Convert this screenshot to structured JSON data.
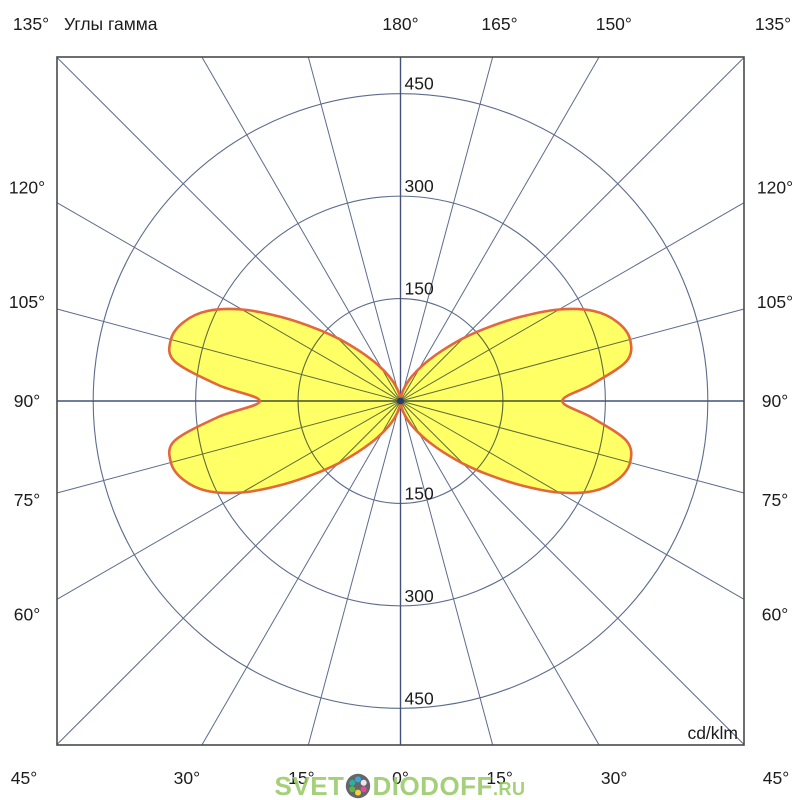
{
  "watermark": {
    "part1": "SVET",
    "part2": "DIODOFF",
    "tld": ".RU",
    "logo_bg": "#4b4b50",
    "logo_dots": [
      "#38a8dc",
      "#e9e9e9",
      "#e8489a",
      "#f2d23c",
      "#5cb544",
      "#28b2a2"
    ]
  },
  "chart_data": {
    "type": "polar",
    "title": "Углы гамма",
    "units": "cd/klm",
    "gamma_zero_position": "bottom",
    "angle_grid_step_deg": 15,
    "radial_ticks": [
      150,
      300,
      450
    ],
    "radial_axis_max": 503,
    "grid_color": "#5d6c8c",
    "axis_color": "#44507a",
    "frame_color": "#4a4a4a",
    "angle_labels": {
      "top": [
        [
          "180°",
          0
        ],
        [
          "165°",
          15
        ],
        [
          "150°",
          30
        ]
      ],
      "bottom": [
        [
          "30°",
          -30
        ],
        [
          "15°",
          -15
        ],
        [
          "0°",
          0
        ],
        [
          "15°",
          15
        ],
        [
          "30°",
          30
        ]
      ],
      "left": [
        [
          "120°",
          30
        ],
        [
          "105°",
          15
        ],
        [
          "90°",
          0
        ],
        [
          "75°",
          -15
        ],
        [
          "60°",
          -30
        ]
      ],
      "right": [
        [
          "120°",
          30
        ],
        [
          "105°",
          15
        ],
        [
          "90°",
          0
        ],
        [
          "75°",
          -15
        ],
        [
          "60°",
          -30
        ]
      ],
      "corners": {
        "top_left": "135°",
        "top_right": "135°",
        "bottom_left": "45°",
        "bottom_right": "45°"
      }
    },
    "curve": {
      "fill": "#ffff66",
      "stroke": "#e2673b",
      "center_dot_color": "#2b3a66",
      "right_profile": [
        [
          0,
          2
        ],
        [
          5,
          5
        ],
        [
          10,
          10
        ],
        [
          15,
          18
        ],
        [
          20,
          28
        ],
        [
          25,
          40
        ],
        [
          30,
          55
        ],
        [
          35,
          74
        ],
        [
          40,
          98
        ],
        [
          45,
          130
        ],
        [
          50,
          168
        ],
        [
          55,
          215
        ],
        [
          60,
          268
        ],
        [
          65,
          312
        ],
        [
          70,
          338
        ],
        [
          75,
          348
        ],
        [
          80,
          336
        ],
        [
          85,
          282
        ],
        [
          90,
          237
        ],
        [
          95,
          282
        ],
        [
          100,
          336
        ],
        [
          105,
          348
        ],
        [
          110,
          338
        ],
        [
          115,
          312
        ],
        [
          120,
          268
        ],
        [
          125,
          215
        ],
        [
          130,
          168
        ],
        [
          135,
          130
        ],
        [
          140,
          98
        ],
        [
          145,
          74
        ],
        [
          150,
          55
        ],
        [
          155,
          40
        ],
        [
          160,
          28
        ],
        [
          165,
          18
        ],
        [
          170,
          10
        ],
        [
          175,
          5
        ],
        [
          180,
          2
        ]
      ],
      "left_profile": [
        [
          0,
          2
        ],
        [
          5,
          5
        ],
        [
          10,
          10
        ],
        [
          15,
          18
        ],
        [
          20,
          28
        ],
        [
          25,
          40
        ],
        [
          30,
          55
        ],
        [
          35,
          74
        ],
        [
          40,
          98
        ],
        [
          45,
          130
        ],
        [
          50,
          168
        ],
        [
          55,
          215
        ],
        [
          60,
          268
        ],
        [
          65,
          312
        ],
        [
          70,
          338
        ],
        [
          75,
          348
        ],
        [
          80,
          336
        ],
        [
          85,
          268
        ],
        [
          90,
          206
        ],
        [
          95,
          268
        ],
        [
          100,
          336
        ],
        [
          105,
          348
        ],
        [
          110,
          338
        ],
        [
          115,
          312
        ],
        [
          120,
          268
        ],
        [
          125,
          215
        ],
        [
          130,
          168
        ],
        [
          135,
          130
        ],
        [
          140,
          98
        ],
        [
          145,
          74
        ],
        [
          150,
          55
        ],
        [
          155,
          40
        ],
        [
          160,
          28
        ],
        [
          165,
          18
        ],
        [
          170,
          10
        ],
        [
          175,
          5
        ],
        [
          180,
          2
        ]
      ]
    }
  }
}
